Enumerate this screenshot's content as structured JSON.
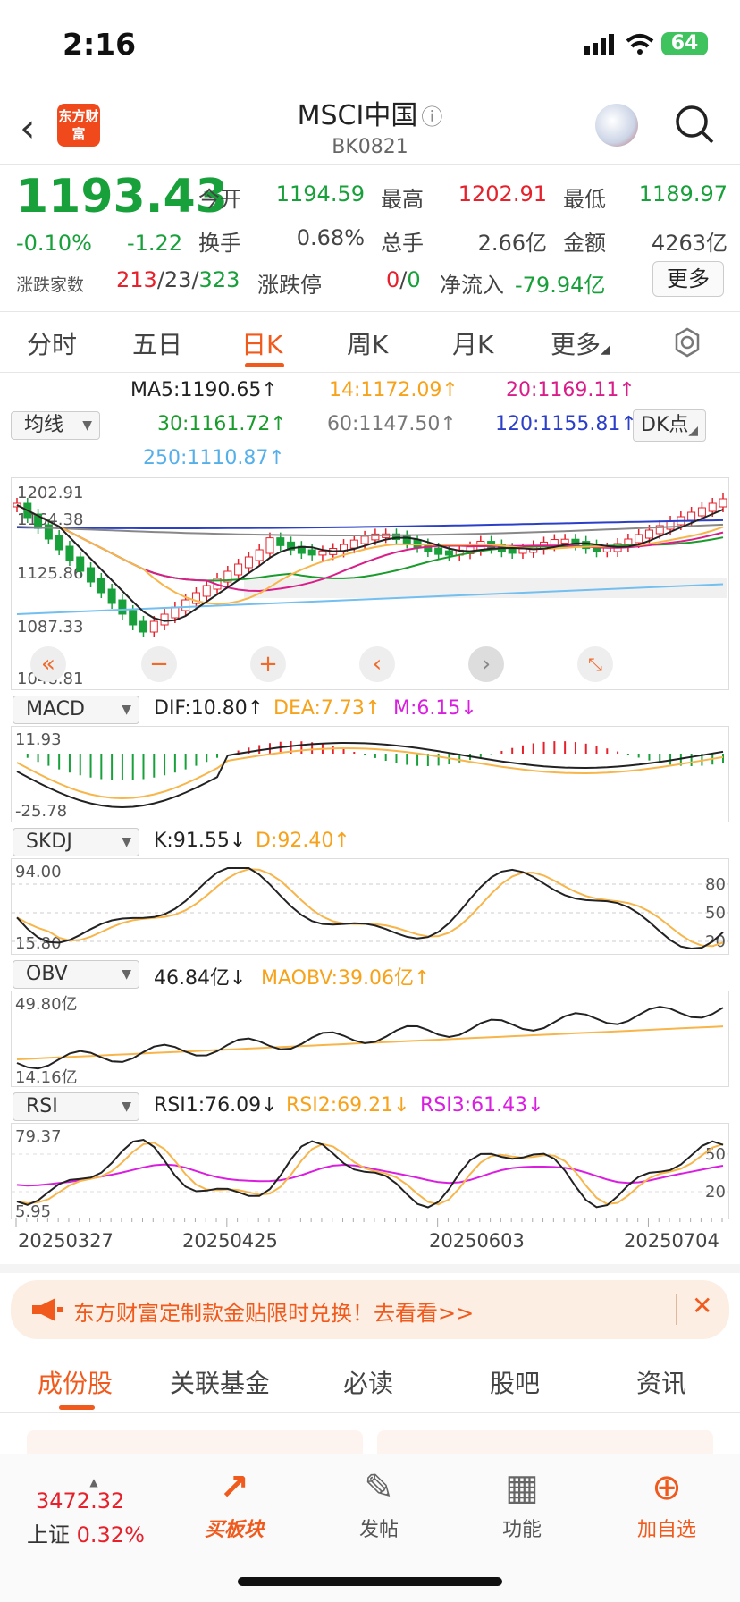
{
  "status_bar": {
    "time": "2:16",
    "battery": "64"
  },
  "header": {
    "logo_text": "东方财富",
    "title": "MSCI中国",
    "code": "BK0821"
  },
  "quote": {
    "price": "1193.43",
    "change_pct": "-0.10%",
    "change": "-1.22",
    "open_label": "今开",
    "open": "1194.59",
    "high_label": "最高",
    "high": "1202.91",
    "low_label": "最低",
    "low": "1189.97",
    "turnover_label": "换手",
    "turnover": "0.68%",
    "volume_label": "总手",
    "volume": "2.66亿",
    "amount_label": "金额",
    "amount": "4263亿",
    "breadth_label": "涨跌家数",
    "up": "213",
    "flat": "23",
    "down": "323",
    "limit_label": "涨跌停",
    "limit_up": "0",
    "limit_down": "0",
    "netflow_label": "净流入",
    "netflow": "-79.94亿",
    "more_label": "更多"
  },
  "period_tabs": [
    "分时",
    "五日",
    "日K",
    "周K",
    "月K",
    "更多"
  ],
  "ma": {
    "select": "均线",
    "ma5": "MA5:1190.65",
    "ma14": "14:1172.09",
    "ma20": "20:1169.11",
    "ma30": "30:1161.72",
    "ma60": "60:1147.50",
    "ma120": "120:1155.81",
    "ma250": "250:1110.87",
    "dk_select": "DK点"
  },
  "kline_axis": [
    "1202.91",
    "1164.38",
    "1125.86",
    "1087.33",
    "1048.81"
  ],
  "macd": {
    "select": "MACD",
    "dif": "DIF:10.80",
    "dea": "DEA:7.73",
    "m": "M:6.15",
    "axis_top": "11.93",
    "axis_bottom": "-25.78"
  },
  "skdj": {
    "select": "SKDJ",
    "k": "K:91.55",
    "d": "D:92.40",
    "axis_top": "94.00",
    "axis_bottom": "15.80",
    "levels": [
      "80",
      "50",
      "20"
    ]
  },
  "obv": {
    "select": "OBV",
    "obv": "46.84亿",
    "maobv": "MAOBV:39.06亿",
    "axis_top": "49.80亿",
    "axis_bottom": "14.16亿"
  },
  "rsi": {
    "select": "RSI",
    "rsi1": "RSI1:76.09",
    "rsi2": "RSI2:69.21",
    "rsi3": "RSI3:61.43",
    "axis_top": "79.37",
    "axis_bottom": "5.95",
    "levels": [
      "50",
      "20"
    ]
  },
  "dates": [
    "20250327",
    "20250425",
    "20250603",
    "20250704"
  ],
  "banner": {
    "text": "东方财富定制款金贴限时兑换！去看看>>"
  },
  "bottom_tabs": [
    "成份股",
    "关联基金",
    "必读",
    "股吧",
    "资讯"
  ],
  "bottom_bar": {
    "index_value": "3472.32",
    "index_name": "上证",
    "index_change": "0.32%",
    "items": [
      "买板块",
      "发帖",
      "功能",
      "加自选"
    ]
  },
  "colors": {
    "up": "#e6212b",
    "down": "#18a03a",
    "accent": "#f05a1c"
  }
}
